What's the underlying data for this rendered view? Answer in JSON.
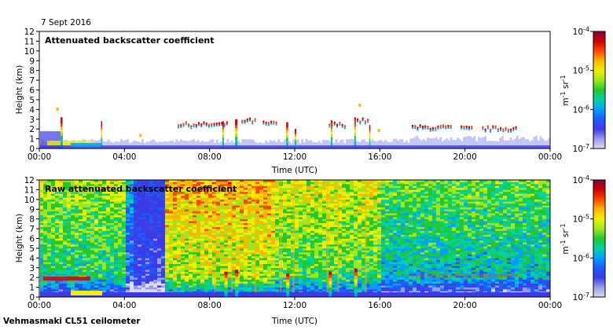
{
  "date_label": "7 Sept 2016",
  "footer": "Vehmasmaki CL51 ceilometer",
  "colors": {
    "colormap": [
      "#dcdcf4",
      "#9a9aec",
      "#3c3ce6",
      "#1a5cff",
      "#00a0ff",
      "#00d2a0",
      "#24c82c",
      "#a0e620",
      "#f0f000",
      "#ffb400",
      "#ff4600",
      "#d20000",
      "#800040"
    ]
  },
  "chart_data": [
    {
      "type": "heatmap",
      "title": "Attenuated backscatter coefficient",
      "xlabel": "Time (UTC)",
      "ylabel": "Height (km)",
      "x_ticks": [
        "00:00",
        "04:00",
        "08:00",
        "12:00",
        "16:00",
        "20:00",
        "00:00"
      ],
      "y_ticks": [
        "0",
        "1",
        "2",
        "3",
        "4",
        "5",
        "6",
        "7",
        "8",
        "9",
        "10",
        "11",
        "12"
      ],
      "xlim": [
        "00:00",
        "24:00"
      ],
      "ylim": [
        0,
        12
      ],
      "colorbar": {
        "scale": "log",
        "ticks": [
          "10",
          "10",
          "10",
          "10"
        ],
        "tick_exponents": [
          "-4",
          "-5",
          "-6",
          "-7"
        ],
        "range": [
          1e-07,
          0.0001
        ],
        "unit": "m",
        "unit_exp1": "-1",
        "unit_mid": " sr",
        "unit_exp2": "-1"
      }
    },
    {
      "type": "heatmap",
      "title": "Raw attenuated backscatter coefficient",
      "xlabel": "Time (UTC)",
      "ylabel": "Height (km)",
      "x_ticks": [
        "00:00",
        "04:00",
        "08:00",
        "12:00",
        "16:00",
        "20:00",
        "00:00"
      ],
      "y_ticks": [
        "0",
        "1",
        "2",
        "3",
        "4",
        "5",
        "6",
        "7",
        "8",
        "9",
        "10",
        "11",
        "12"
      ],
      "xlim": [
        "00:00",
        "24:00"
      ],
      "ylim": [
        0,
        12
      ],
      "colorbar": {
        "scale": "log",
        "ticks": [
          "10",
          "10",
          "10",
          "10"
        ],
        "tick_exponents": [
          "-4",
          "-5",
          "-6",
          "-7"
        ],
        "range": [
          1e-07,
          0.0001
        ],
        "unit": "m",
        "unit_exp1": "-1",
        "unit_mid": " sr",
        "unit_exp2": "-1"
      }
    }
  ]
}
